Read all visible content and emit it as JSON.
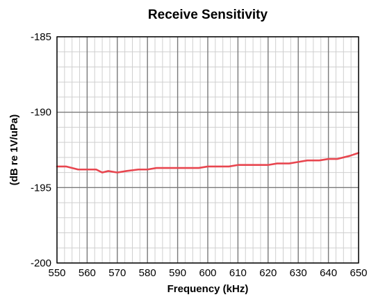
{
  "chart_data": {
    "type": "line",
    "title": "Receive Sensitivity",
    "xlabel": "Frequency (kHz)",
    "ylabel": "(dB re 1V/uPa)",
    "xlim": [
      550,
      650
    ],
    "ylim": [
      -200,
      -185
    ],
    "xticks": [
      550,
      560,
      570,
      580,
      590,
      600,
      610,
      620,
      630,
      640,
      650
    ],
    "yticks": [
      -185,
      -190,
      -195,
      -200
    ],
    "x_minor_step": 2.5,
    "y_minor_step": 1,
    "grid": true,
    "line_color": "#e8464f",
    "series": [
      {
        "x": [
          550,
          553,
          557,
          560,
          563,
          565,
          567,
          570,
          573,
          577,
          580,
          583,
          587,
          590,
          593,
          597,
          600,
          603,
          607,
          610,
          613,
          617,
          620,
          623,
          627,
          630,
          633,
          637,
          640,
          643,
          647,
          650
        ],
        "values": [
          -193.6,
          -193.6,
          -193.8,
          -193.8,
          -193.8,
          -194.0,
          -193.9,
          -194.0,
          -193.9,
          -193.8,
          -193.8,
          -193.7,
          -193.7,
          -193.7,
          -193.7,
          -193.7,
          -193.6,
          -193.6,
          -193.6,
          -193.5,
          -193.5,
          -193.5,
          -193.5,
          -193.4,
          -193.4,
          -193.3,
          -193.2,
          -193.2,
          -193.1,
          -193.1,
          -192.9,
          -192.7
        ]
      }
    ]
  }
}
